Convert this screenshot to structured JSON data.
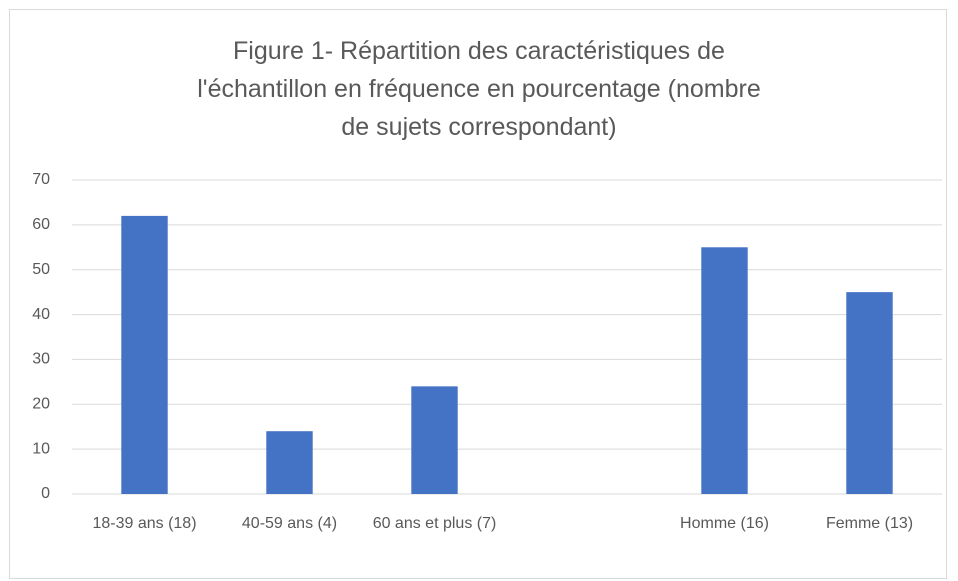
{
  "chart_data": {
    "type": "bar",
    "title": "Figure 1- Répartition des caractéristiques de l'échantillon en fréquence en pourcentage (nombre de sujets correspondant)",
    "categories": [
      "18-39 ans (18)",
      "40-59 ans (4)",
      "60 ans et plus (7)",
      null,
      "Homme (16)",
      "Femme (13)"
    ],
    "values": [
      62,
      14,
      24,
      null,
      55,
      45
    ],
    "color": "#4472c4",
    "ylim": [
      0,
      70
    ],
    "yticks": [
      0,
      10,
      20,
      30,
      40,
      50,
      60,
      70
    ],
    "grid": true
  }
}
